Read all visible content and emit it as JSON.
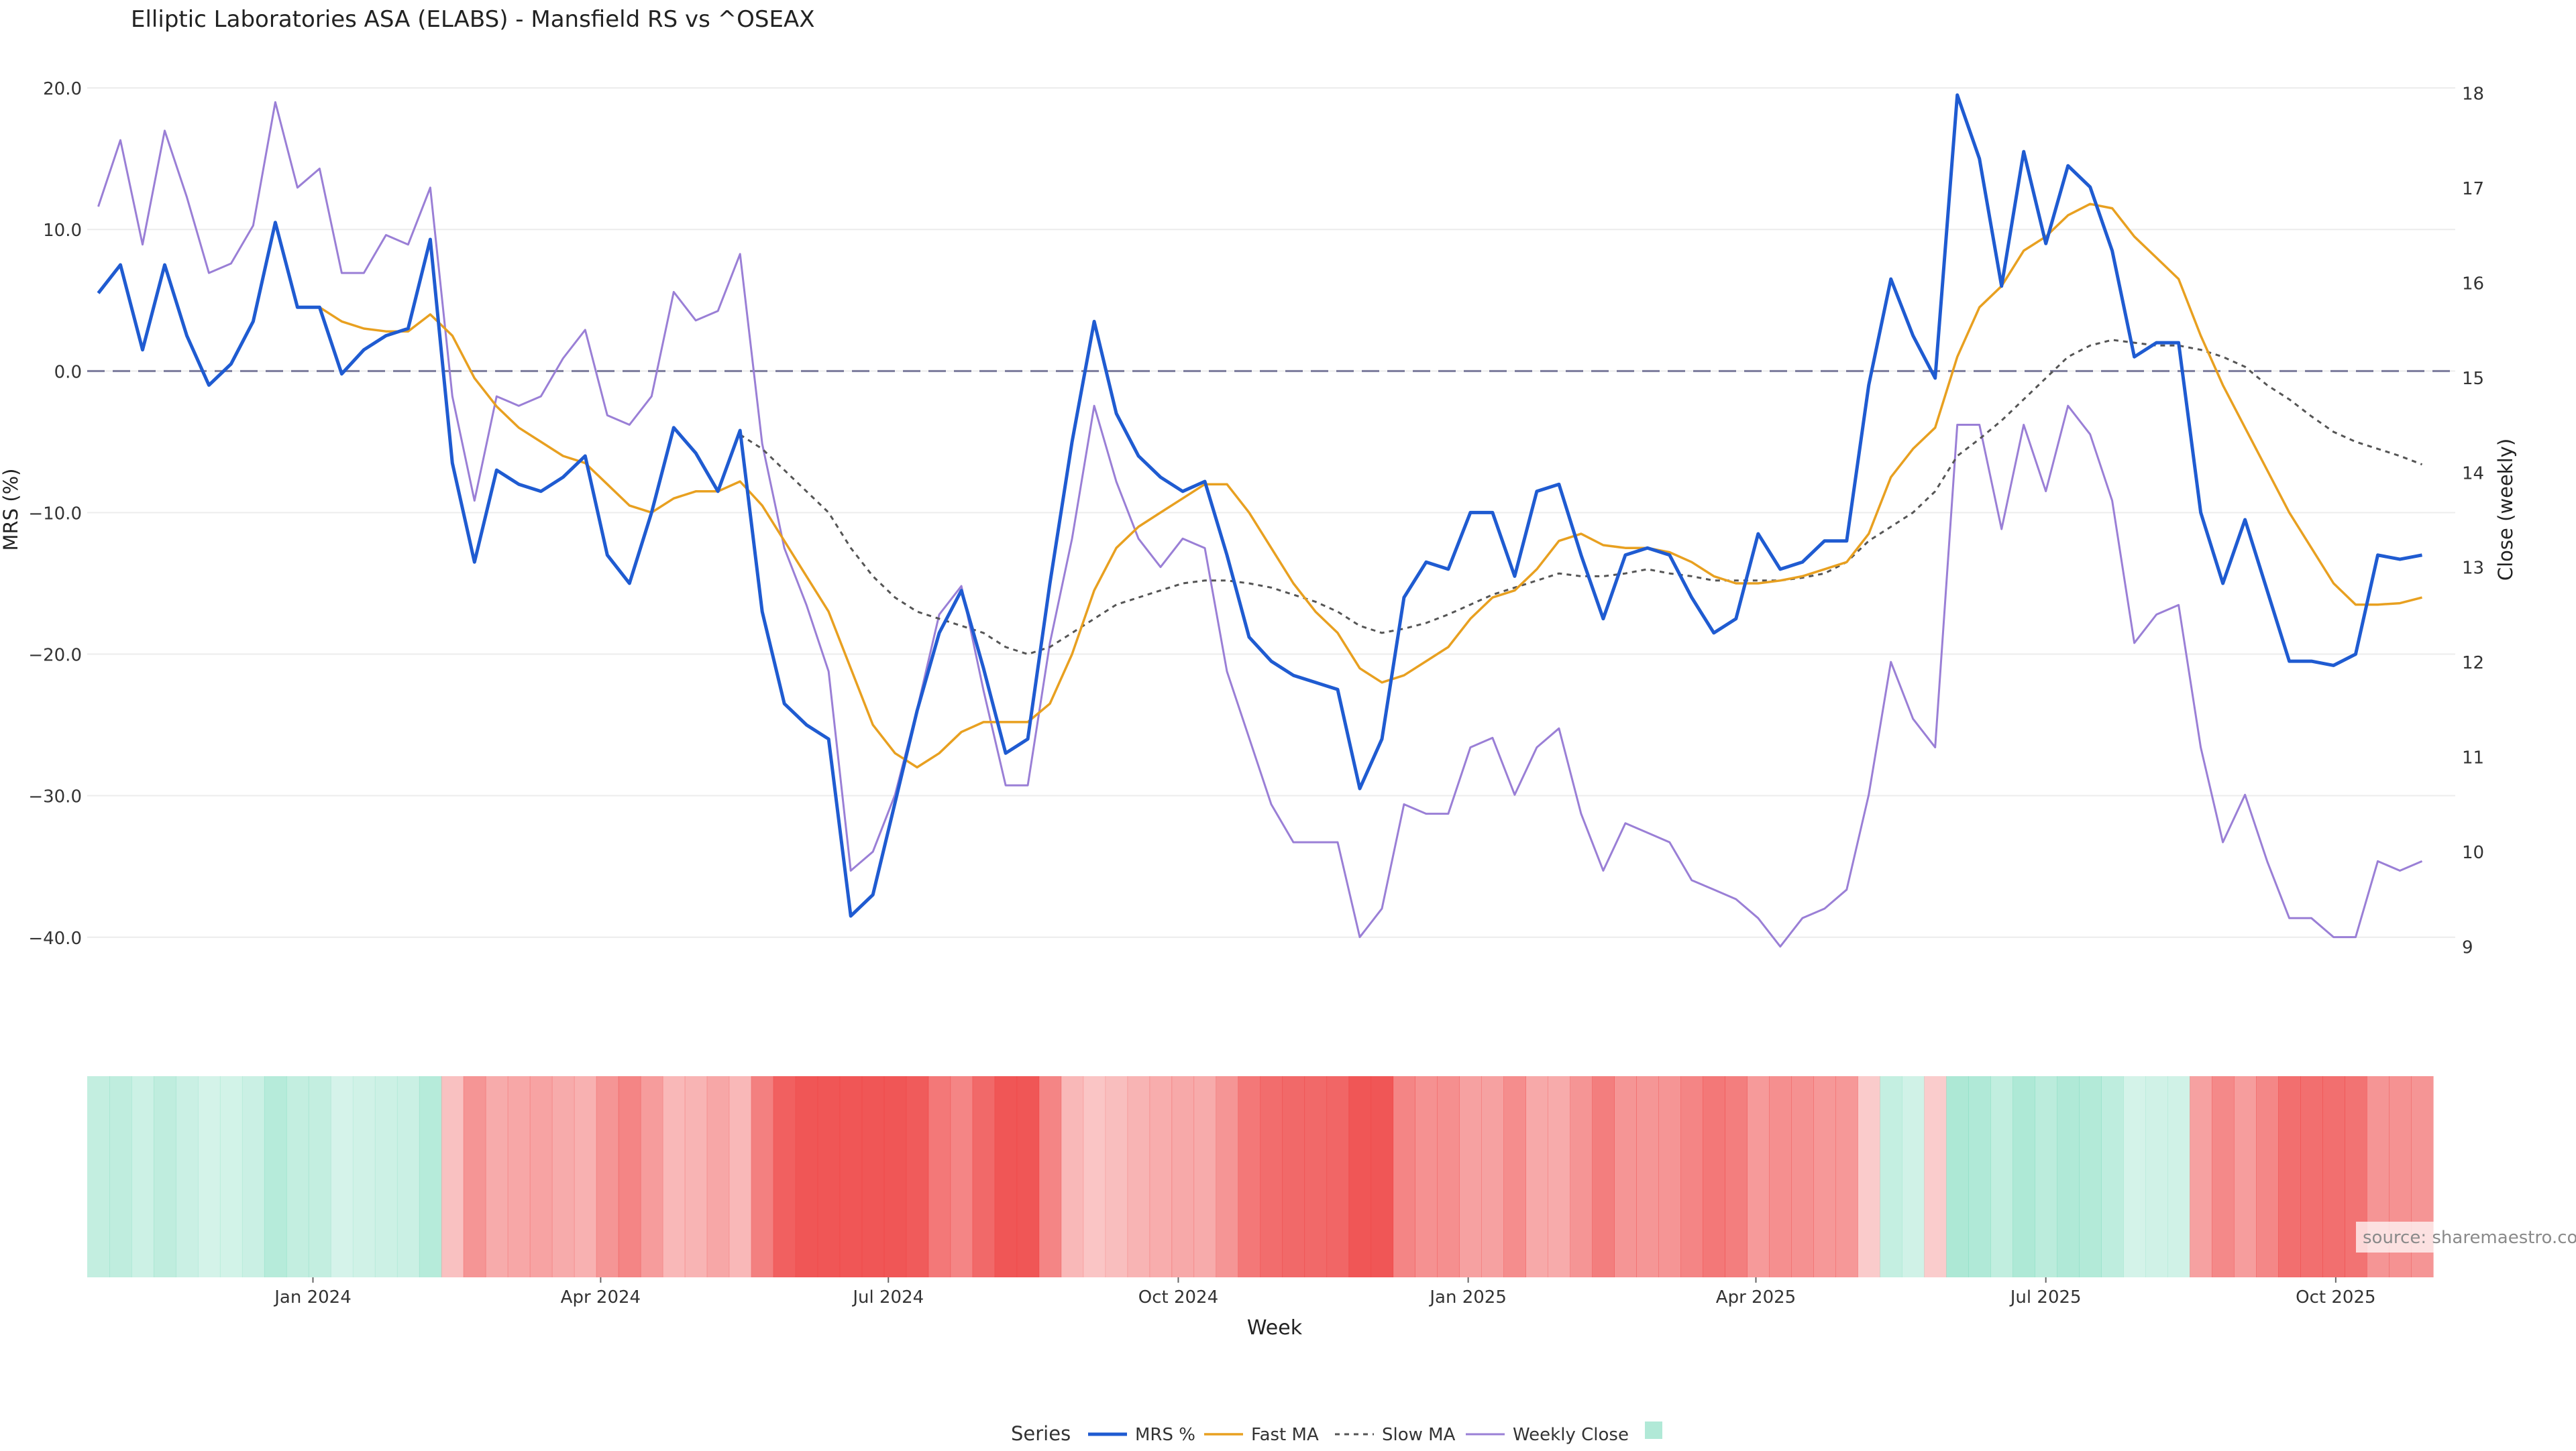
{
  "chart_data": {
    "type": "line",
    "title": "Elliptic Laboratories ASA (ELABS) - Mansfield RS vs ^OSEAX",
    "xlabel": "Week",
    "ylabel": "MRS (%)",
    "y2label": "Close (weekly)",
    "ylim": [
      -42,
      21
    ],
    "y2lim": [
      8.8,
      18.2
    ],
    "yticks": [
      "20.0",
      "10.0",
      "0.0",
      "−10.0",
      "−20.0",
      "−30.0",
      "−40.0"
    ],
    "yticks_values": [
      20,
      10,
      0,
      -10,
      -20,
      -30,
      -40
    ],
    "y2ticks": [
      "18",
      "17",
      "16",
      "15",
      "14",
      "13",
      "12",
      "11",
      "10",
      "9"
    ],
    "y2ticks_values": [
      18,
      17,
      16,
      15,
      14,
      13,
      12,
      11,
      10,
      9
    ],
    "xticks": [
      "Jan 2024",
      "Apr 2024",
      "Jul 2024",
      "Oct 2024",
      "Jan 2025",
      "Apr 2025",
      "Jul 2025",
      "Oct 2025"
    ],
    "xticks_week_index": [
      9.7,
      22.7,
      35.7,
      48.8,
      61.9,
      74.9,
      88.0,
      101.1
    ],
    "week_count": 107,
    "zero_line": 0,
    "grid": true,
    "source": "source: sharemaestro.com",
    "legend": {
      "title": "Series",
      "placement": "bottom-center",
      "entries": [
        "MRS %",
        "Fast MA",
        "Slow MA",
        "Weekly Close"
      ]
    },
    "colors": {
      "mrs": "#1f5bd1",
      "fast_ma": "#e8a020",
      "slow_ma": "#555555",
      "weekly_close": "#9a7fd6",
      "zero_line": "#7b7b9c",
      "heat_positive": "#64d4b0",
      "heat_negative": "#ee4444"
    },
    "series": [
      {
        "name": "MRS %",
        "axis": "left",
        "values": [
          5.5,
          7.5,
          1.5,
          7.5,
          2.5,
          -1.0,
          0.5,
          3.5,
          10.5,
          4.5,
          4.5,
          -0.2,
          1.5,
          2.5,
          3.0,
          9.3,
          -6.5,
          -13.5,
          -7.0,
          -8.0,
          -8.5,
          -7.5,
          -6.0,
          -13.0,
          -15.0,
          -10.0,
          -4.0,
          -5.8,
          -8.5,
          -4.2,
          -17.0,
          -23.5,
          -25.0,
          -26.0,
          -38.5,
          -37.0,
          -30.5,
          -24.0,
          -18.5,
          -15.5,
          -21.0,
          -27.0,
          -26.0,
          -15.0,
          -5.0,
          3.5,
          -3.0,
          -6.0,
          -7.5,
          -8.5,
          -7.8,
          -13.0,
          -18.8,
          -20.5,
          -21.5,
          -22.0,
          -22.5,
          -29.5,
          -26.0,
          -16.0,
          -13.5,
          -14.0,
          -10.0,
          -10.0,
          -14.5,
          -8.5,
          -8.0,
          -13.0,
          -17.5,
          -13.0,
          -12.5,
          -13.0,
          -16.0,
          -18.5,
          -17.5,
          -11.5,
          -14.0,
          -13.5,
          -12.0,
          -12.0,
          -1.0,
          6.5,
          2.5,
          -0.5,
          19.5,
          15.0,
          6.0,
          15.5,
          9.0,
          14.5,
          13.0,
          8.5,
          1.0,
          2.0,
          2.0,
          -10.0,
          -15.0,
          -10.5,
          -15.5,
          -20.5,
          -20.5,
          -20.8,
          -20.0,
          -13.0,
          -13.3,
          -13.0
        ]
      },
      {
        "name": "Fast MA",
        "axis": "left",
        "values": [
          null,
          null,
          null,
          null,
          null,
          null,
          null,
          null,
          null,
          4.5,
          4.5,
          3.5,
          3.0,
          2.8,
          2.8,
          4.0,
          2.5,
          -0.5,
          -2.5,
          -4.0,
          -5.0,
          -6.0,
          -6.5,
          -8.0,
          -9.5,
          -10.0,
          -9.0,
          -8.5,
          -8.5,
          -7.8,
          -9.5,
          -12.0,
          -14.5,
          -17.0,
          -21.0,
          -25.0,
          -27.0,
          -28.0,
          -27.0,
          -25.5,
          -24.8,
          -24.8,
          -24.8,
          -23.5,
          -20.0,
          -15.5,
          -12.5,
          -11.0,
          -10.0,
          -9.0,
          -8.0,
          -8.0,
          -10.0,
          -12.5,
          -15.0,
          -17.0,
          -18.5,
          -21.0,
          -22.0,
          -21.5,
          -20.5,
          -19.5,
          -17.5,
          -16.0,
          -15.5,
          -14.0,
          -12.0,
          -11.5,
          -12.3,
          -12.5,
          -12.5,
          -12.8,
          -13.5,
          -14.5,
          -15.0,
          -15.0,
          -14.8,
          -14.5,
          -14.0,
          -13.5,
          -11.5,
          -7.5,
          -5.5,
          -4.0,
          1.0,
          4.5,
          6.0,
          8.5,
          9.5,
          11.0,
          11.8,
          11.5,
          9.5,
          8.0,
          6.5,
          2.5,
          -1.0,
          -4.0,
          -7.0,
          -10.0,
          -12.5,
          -15.0,
          -16.5,
          -16.5,
          -16.4,
          -16.0
        ]
      },
      {
        "name": "Slow MA",
        "axis": "left",
        "values": [
          null,
          null,
          null,
          null,
          null,
          null,
          null,
          null,
          null,
          null,
          null,
          null,
          null,
          null,
          null,
          null,
          null,
          null,
          null,
          null,
          null,
          null,
          null,
          null,
          null,
          null,
          null,
          null,
          null,
          -4.5,
          -5.5,
          -7.0,
          -8.5,
          -10.0,
          -12.5,
          -14.5,
          -16.0,
          -17.0,
          -17.5,
          -18.0,
          -18.5,
          -19.5,
          -20.0,
          -19.5,
          -18.5,
          -17.5,
          -16.5,
          -16.0,
          -15.5,
          -15.0,
          -14.8,
          -14.8,
          -15.0,
          -15.3,
          -15.8,
          -16.3,
          -17.0,
          -18.0,
          -18.5,
          -18.2,
          -17.8,
          -17.2,
          -16.5,
          -15.8,
          -15.3,
          -14.8,
          -14.3,
          -14.5,
          -14.5,
          -14.3,
          -14.0,
          -14.3,
          -14.5,
          -14.8,
          -14.8,
          -14.8,
          -14.8,
          -14.6,
          -14.3,
          -13.5,
          -12.0,
          -11.0,
          -10.0,
          -8.5,
          -6.0,
          -4.8,
          -3.5,
          -2.0,
          -0.5,
          1.0,
          1.8,
          2.2,
          2.0,
          1.8,
          1.8,
          1.5,
          1.0,
          0.3,
          -1.0,
          -2.0,
          -3.2,
          -4.3,
          -5.0,
          -5.5,
          -6.0,
          -6.6
        ]
      },
      {
        "name": "Weekly Close",
        "axis": "right",
        "values": [
          16.8,
          17.5,
          16.4,
          17.6,
          16.9,
          16.1,
          16.2,
          16.6,
          17.9,
          17.0,
          17.2,
          16.1,
          16.1,
          16.5,
          16.4,
          17.0,
          14.8,
          13.7,
          14.8,
          14.7,
          14.8,
          15.2,
          15.5,
          14.6,
          14.5,
          14.8,
          15.9,
          15.6,
          15.7,
          16.3,
          14.3,
          13.2,
          12.6,
          11.9,
          9.8,
          10.0,
          10.6,
          11.5,
          12.5,
          12.8,
          11.7,
          10.7,
          10.7,
          12.2,
          13.3,
          14.7,
          13.9,
          13.3,
          13.0,
          13.3,
          13.2,
          11.9,
          11.2,
          10.5,
          10.1,
          10.1,
          10.1,
          9.1,
          9.4,
          10.5,
          10.4,
          10.4,
          11.1,
          11.2,
          10.6,
          11.1,
          11.3,
          10.4,
          9.8,
          10.3,
          10.2,
          10.1,
          9.7,
          9.6,
          9.5,
          9.3,
          9.0,
          9.3,
          9.4,
          9.6,
          10.6,
          12.0,
          11.4,
          11.1,
          14.5,
          14.5,
          13.4,
          14.5,
          13.8,
          14.7,
          14.4,
          13.7,
          12.2,
          12.5,
          12.6,
          11.1,
          10.1,
          10.6,
          9.9,
          9.3,
          9.3,
          9.1,
          9.1,
          9.9,
          9.8,
          9.9
        ]
      }
    ],
    "heat_strip": [
      2.8,
      3.2,
      1.5,
      3.2,
      1.8,
      0.6,
      0.8,
      1.8,
      4.5,
      2.8,
      2.8,
      0.3,
      1.0,
      1.5,
      1.8,
      4.5,
      -1.5,
      -6.5,
      -4.0,
      -4.5,
      -4.8,
      -4.0,
      -3.5,
      -6.5,
      -8.0,
      -5.5,
      -2.5,
      -3.0,
      -4.5,
      -2.5,
      -8.5,
      -12.0,
      -13.0,
      -13.5,
      -18.0,
      -18.0,
      -16.0,
      -12.5,
      -9.5,
      -8.0,
      -11.0,
      -14.0,
      -13.5,
      -8.0,
      -2.5,
      -1.2,
      -2.0,
      -3.0,
      -3.8,
      -4.2,
      -4.0,
      -6.5,
      -9.5,
      -10.5,
      -11.0,
      -11.0,
      -11.5,
      -15.0,
      -13.0,
      -8.0,
      -6.8,
      -7.0,
      -5.0,
      -5.0,
      -7.2,
      -4.2,
      -4.0,
      -6.5,
      -8.8,
      -6.5,
      -6.3,
      -6.5,
      -8.0,
      -9.3,
      -8.8,
      -5.8,
      -7.0,
      -6.8,
      -6.0,
      -6.0,
      -0.6,
      2.5,
      1.0,
      -0.3,
      5.5,
      5.2,
      3.0,
      5.3,
      3.8,
      5.1,
      4.8,
      3.5,
      0.6,
      1.0,
      1.0,
      -5.0,
      -7.5,
      -5.3,
      -7.8,
      -10.3,
      -10.3,
      -10.4,
      -10.0,
      -6.5,
      -6.7,
      -6.5
    ]
  }
}
